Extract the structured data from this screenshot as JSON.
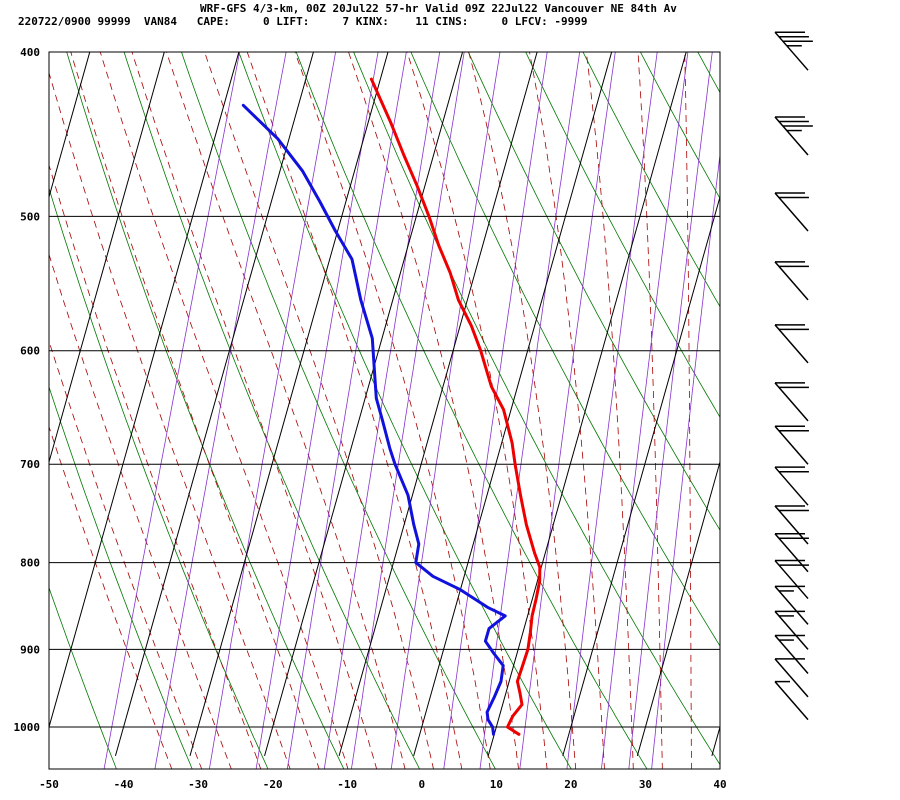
{
  "header": {
    "line1": "WRF-GFS 4/3-km, 00Z 20Jul22 57-hr Valid 09Z 22Jul22 Vancouver NE 84th Av",
    "line2": "220722/0900 99999  VAN84   CAPE:     0 LIFT:     7 KINX:    11 CINS:     0 LFCV: -9999"
  },
  "chart_data": {
    "type": "line",
    "title": "WRF-GFS 4/3-km, 00Z 20Jul22 57-hr Valid 09Z 22Jul22 Vancouver NE 84th Av",
    "xlabel": "",
    "ylabel": "",
    "x_axis": {
      "range": [
        -50,
        40
      ],
      "ticks": [
        -50,
        -40,
        -30,
        -20,
        -10,
        0,
        10,
        20,
        30,
        40
      ]
    },
    "y_axis": {
      "scale": "log-pressure",
      "range": [
        1040,
        400
      ],
      "ticks": [
        400,
        500,
        600,
        700,
        800,
        900,
        1000
      ]
    },
    "grid": true,
    "skew": {
      "type": "skew-T",
      "deg_C_per_log_decade": 64
    },
    "colors": {
      "temperature": "#ee0000",
      "dewpoint": "#1111dd",
      "dry_adiabat": "#007700",
      "moist_adiabat": "#aa0000",
      "mixing_ratio": "#8833cc",
      "grid": "#000000"
    },
    "series": [
      {
        "label": "temperature",
        "points": [
          [
            1010,
            13.3
          ],
          [
            1000,
            11.5
          ],
          [
            985,
            11.8
          ],
          [
            970,
            12.6
          ],
          [
            955,
            11.9
          ],
          [
            940,
            11.1
          ],
          [
            920,
            11.2
          ],
          [
            900,
            11.3
          ],
          [
            880,
            11.0
          ],
          [
            860,
            10.6
          ],
          [
            840,
            10.5
          ],
          [
            820,
            10.3
          ],
          [
            805,
            9.8
          ],
          [
            790,
            8.6
          ],
          [
            760,
            6.4
          ],
          [
            730,
            4.5
          ],
          [
            700,
            2.6
          ],
          [
            680,
            1.4
          ],
          [
            650,
            -1.0
          ],
          [
            630,
            -3.5
          ],
          [
            600,
            -6.3
          ],
          [
            580,
            -8.5
          ],
          [
            560,
            -11.2
          ],
          [
            540,
            -13.3
          ],
          [
            520,
            -15.9
          ],
          [
            500,
            -18.3
          ],
          [
            480,
            -21.0
          ],
          [
            460,
            -24.0
          ],
          [
            440,
            -27.0
          ],
          [
            415,
            -31.2
          ]
        ]
      },
      {
        "label": "dewpoint",
        "points": [
          [
            1010,
            9.9
          ],
          [
            1000,
            9.5
          ],
          [
            990,
            8.6
          ],
          [
            980,
            8.2
          ],
          [
            960,
            8.6
          ],
          [
            940,
            8.9
          ],
          [
            920,
            8.6
          ],
          [
            905,
            6.9
          ],
          [
            890,
            5.3
          ],
          [
            875,
            5.3
          ],
          [
            860,
            7.0
          ],
          [
            850,
            4.3
          ],
          [
            830,
            0.0
          ],
          [
            815,
            -4.2
          ],
          [
            800,
            -7.0
          ],
          [
            780,
            -7.3
          ],
          [
            760,
            -8.7
          ],
          [
            730,
            -10.6
          ],
          [
            700,
            -13.5
          ],
          [
            685,
            -14.8
          ],
          [
            660,
            -16.8
          ],
          [
            640,
            -18.5
          ],
          [
            620,
            -19.6
          ],
          [
            590,
            -21.3
          ],
          [
            560,
            -24.3
          ],
          [
            530,
            -27.0
          ],
          [
            510,
            -30.3
          ],
          [
            490,
            -33.5
          ],
          [
            470,
            -37.0
          ],
          [
            450,
            -41.5
          ],
          [
            430,
            -47.4
          ]
        ]
      }
    ],
    "wind_barbs": {
      "unit": "kt",
      "levels": [
        {
          "p": 410,
          "speed": 35
        },
        {
          "p": 460,
          "speed": 35
        },
        {
          "p": 510,
          "speed": 20
        },
        {
          "p": 560,
          "speed": 20
        },
        {
          "p": 610,
          "speed": 20
        },
        {
          "p": 660,
          "speed": 20
        },
        {
          "p": 700,
          "speed": 20
        },
        {
          "p": 740,
          "speed": 20
        },
        {
          "p": 780,
          "speed": 20
        },
        {
          "p": 810,
          "speed": 20
        },
        {
          "p": 840,
          "speed": 20
        },
        {
          "p": 870,
          "speed": 15
        },
        {
          "p": 900,
          "speed": 15
        },
        {
          "p": 930,
          "speed": 15
        },
        {
          "p": 960,
          "speed": 10
        },
        {
          "p": 990,
          "speed": 5
        }
      ]
    }
  }
}
